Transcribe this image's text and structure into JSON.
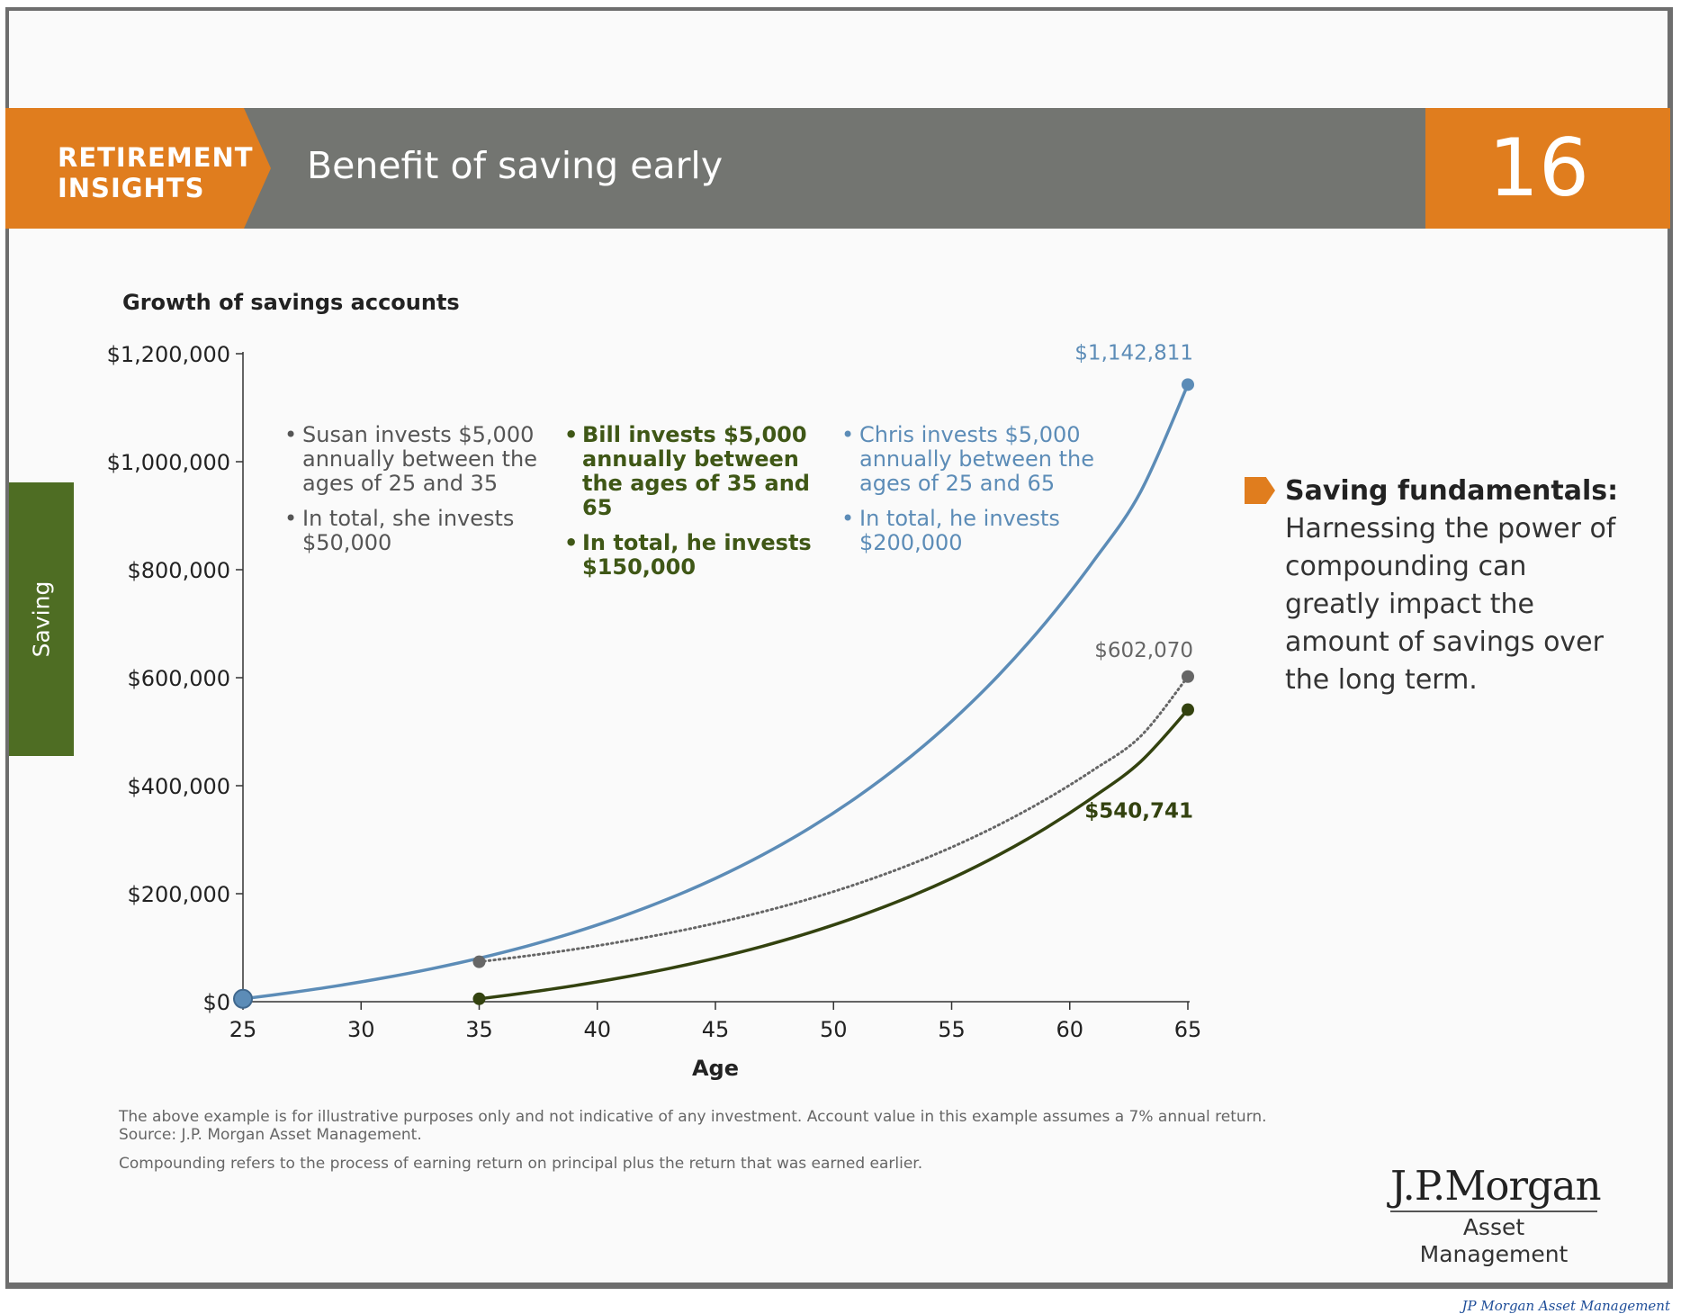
{
  "header": {
    "tag_line1": "RETIREMENT",
    "tag_line2": "INSIGHTS",
    "title": "Benefit of saving early",
    "page_number": "16"
  },
  "side_tab": {
    "label": "Saving"
  },
  "annotations": {
    "susan": [
      "Susan invests $5,000 annually between the ages of 25 and 35",
      "In total, she invests $50,000"
    ],
    "bill": [
      "Bill invests $5,000 annually between the ages of 35 and 65",
      "In total, he invests $150,000"
    ],
    "chris": [
      "Chris invests $5,000 annually between the ages of 25 and 65",
      "In total, he invests $200,000"
    ]
  },
  "fundamentals": {
    "heading": "Saving fundamentals:",
    "body": "Harnessing the power of compounding can greatly impact the amount of savings over the long term."
  },
  "footnotes": {
    "line1": "The above example is for illustrative purposes only and not indicative of any investment. Account value in this example assumes a 7% annual return.",
    "line2": "Source: J.P. Morgan Asset Management.",
    "line3": "Compounding refers to the process of earning return on principal plus the return that was earned earlier."
  },
  "logo": {
    "main": "J.P.Morgan",
    "sub": "Asset Management"
  },
  "credit": "JP Morgan Asset Management",
  "colors": {
    "orange": "#e07d1e",
    "gray_header": "#737571",
    "green_tab": "#4e6d23",
    "chris": "#5c8cb7",
    "susan": "#666666",
    "bill": "#33420f"
  },
  "chart_data": {
    "type": "line",
    "title": "Growth of savings accounts",
    "xlabel": "Age",
    "ylabel": "",
    "xlim": [
      25,
      65
    ],
    "ylim": [
      0,
      1200000
    ],
    "xticks": [
      25,
      30,
      35,
      40,
      45,
      50,
      55,
      60,
      65
    ],
    "yticks": [
      0,
      200000,
      400000,
      600000,
      800000,
      1000000,
      1200000
    ],
    "ytick_labels": [
      "$0",
      "$200,000",
      "$400,000",
      "$600,000",
      "$800,000",
      "$1,000,000",
      "$1,200,000"
    ],
    "grid": false,
    "series": [
      {
        "key": "chris",
        "color": "#5c8cb7",
        "style": "solid",
        "x": [
          25,
          27,
          29,
          31,
          33,
          35,
          37,
          39,
          41,
          43,
          45,
          47,
          49,
          51,
          53,
          55,
          57,
          59,
          61,
          63,
          65
        ],
        "y": [
          5350,
          16613,
          29509,
          44273,
          61176,
          80528,
          102684,
          128050,
          157091,
          190341,
          228409,
          271993,
          321892,
          379022,
          444430,
          519315,
          605051,
          703209,
          815591,
          944258,
          1142811
        ],
        "end_label": "$1,142,811"
      },
      {
        "key": "susan",
        "color": "#666666",
        "style": "dotted",
        "x": [
          35,
          37,
          39,
          41,
          43,
          45,
          47,
          49,
          51,
          53,
          55,
          57,
          59,
          61,
          63,
          65
        ],
        "y": [
          73918,
          84628,
          96891,
          110930,
          127003,
          145405,
          166474,
          190595,
          218212,
          249830,
          286029,
          327473,
          374923,
          429249,
          491446,
          602070
        ],
        "end_label": "$602,070"
      },
      {
        "key": "bill",
        "color": "#33420f",
        "style": "solid",
        "x": [
          35,
          37,
          39,
          41,
          43,
          45,
          47,
          49,
          51,
          53,
          55,
          57,
          59,
          61,
          63,
          65
        ],
        "y": [
          5350,
          16613,
          29509,
          44273,
          61176,
          80528,
          102684,
          128050,
          157091,
          190341,
          228409,
          271993,
          321892,
          379022,
          444430,
          540741
        ],
        "end_label": "$540,741"
      }
    ]
  }
}
